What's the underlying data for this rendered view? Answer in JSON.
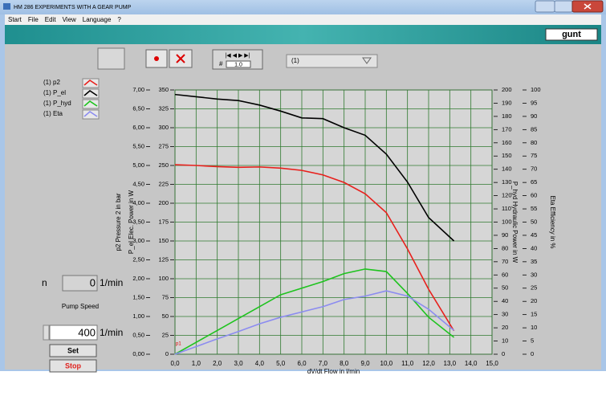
{
  "window": {
    "title": "HM 286 EXPERIMENTS WITH A GEAR PUMP"
  },
  "menu": [
    "Start",
    "File",
    "Edit",
    "View",
    "Language",
    "?"
  ],
  "logo": "gunt",
  "toolbar": {
    "counter_label": "#",
    "counter_value": "1.0",
    "dropdown": "(1)"
  },
  "controls": {
    "n_label": "n",
    "n_value": 0,
    "n_unit": "1/min",
    "speed_label": "Pump Speed",
    "speed_value": 400,
    "speed_unit": "1/min",
    "set_button": "Set",
    "stop_button": "Stop"
  },
  "chart_data": {
    "type": "line",
    "xlabel": "dV/dt Flow  in l/min",
    "xlim": [
      0,
      15
    ],
    "xticks": [
      {
        "value": 0,
        "label": "0,0"
      },
      {
        "value": 1,
        "label": "1,0"
      },
      {
        "value": 2,
        "label": "2,0"
      },
      {
        "value": 3,
        "label": "3,0"
      },
      {
        "value": 4,
        "label": "4,0"
      },
      {
        "value": 5,
        "label": "5,0"
      },
      {
        "value": 6,
        "label": "6,0"
      },
      {
        "value": 7,
        "label": "7,0"
      },
      {
        "value": 8,
        "label": "8,0"
      },
      {
        "value": 9,
        "label": "9,0"
      },
      {
        "value": 10,
        "label": "10,0"
      },
      {
        "value": 11,
        "label": "11,0"
      },
      {
        "value": 12,
        "label": "12,0"
      },
      {
        "value": 13,
        "label": "13,0"
      },
      {
        "value": 14,
        "label": "14,0"
      },
      {
        "value": 15,
        "label": "15,0"
      }
    ],
    "grid": true,
    "axes": [
      {
        "label": "p2 Pressure 2 in bar",
        "lim": [
          0,
          7
        ],
        "ticks": [
          {
            "value": 0,
            "label": "0,00"
          },
          {
            "value": 0.5,
            "label": "0,50"
          },
          {
            "value": 1,
            "label": "1,00"
          },
          {
            "value": 1.5,
            "label": "1,50"
          },
          {
            "value": 2,
            "label": "2,00"
          },
          {
            "value": 2.5,
            "label": "2,50"
          },
          {
            "value": 3,
            "label": "3,00"
          },
          {
            "value": 3.5,
            "label": "3,50"
          },
          {
            "value": 4,
            "label": "4,00"
          },
          {
            "value": 4.5,
            "label": "4,50"
          },
          {
            "value": 5,
            "label": "5,00"
          },
          {
            "value": 5.5,
            "label": "5,50"
          },
          {
            "value": 6,
            "label": "6,00"
          },
          {
            "value": 6.5,
            "label": "6,50"
          },
          {
            "value": 7,
            "label": "7,00"
          }
        ]
      },
      {
        "label": "P_el Elec. Power  in W",
        "lim": [
          0,
          350
        ],
        "ticks": [
          0,
          25,
          50,
          75,
          100,
          125,
          150,
          175,
          200,
          225,
          250,
          275,
          300,
          325,
          350
        ]
      },
      {
        "label": "P_hyd Hydraulic Power in W",
        "lim": [
          0,
          200
        ],
        "ticks": [
          0,
          10,
          20,
          30,
          40,
          50,
          60,
          70,
          80,
          90,
          100,
          110,
          120,
          130,
          140,
          150,
          160,
          170,
          180,
          190,
          200
        ]
      },
      {
        "label": "Eta Efficiency in %",
        "lim": [
          0,
          100
        ],
        "ticks": [
          0,
          5,
          10,
          15,
          20,
          25,
          30,
          35,
          40,
          45,
          50,
          55,
          60,
          65,
          70,
          75,
          80,
          85,
          90,
          95,
          100
        ]
      }
    ],
    "x": [
      0,
      1,
      2,
      3,
      4,
      5,
      6,
      7,
      8,
      9,
      10,
      11,
      12,
      13.2
    ],
    "series": [
      {
        "name": "(1) p2",
        "color": "#e8201c",
        "axis": 0,
        "values": [
          5.02,
          5.0,
          4.97,
          4.95,
          4.96,
          4.93,
          4.87,
          4.75,
          4.55,
          4.25,
          3.75,
          2.79,
          1.72,
          0.62
        ]
      },
      {
        "name": "(1) P_el",
        "color": "#000000",
        "axis": 1,
        "values": [
          344,
          341,
          338,
          336,
          330,
          322,
          313,
          312,
          300,
          290,
          265,
          228,
          181,
          150
        ]
      },
      {
        "name": "(1) P_hyd",
        "color": "#1ec31e",
        "axis": 2,
        "values": [
          0,
          9,
          18,
          27,
          36,
          45,
          50,
          55,
          61,
          64.5,
          62.6,
          46,
          28,
          12.8
        ]
      },
      {
        "name": "(1) Eta",
        "color": "#8c8cf0",
        "axis": 3,
        "values": [
          0,
          2.9,
          5.8,
          8.6,
          11.5,
          14,
          16,
          18,
          20.7,
          22,
          24,
          22,
          17,
          9
        ]
      }
    ],
    "annotation": "p1"
  }
}
